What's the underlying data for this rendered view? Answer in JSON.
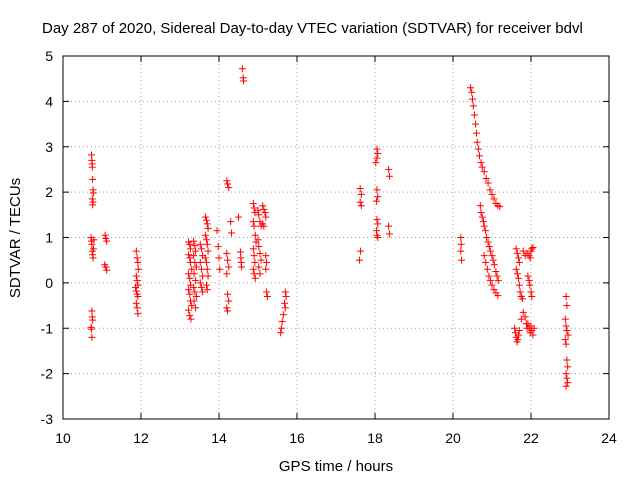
{
  "chart_data": {
    "type": "scatter",
    "title": "Day 287 of 2020, Sidereal Day-to-day VTEC variation (SDTVAR) for receiver bdvl",
    "xlabel": "GPS time / hours",
    "ylabel": "SDTVAR / TECUs",
    "xlim": [
      10,
      24
    ],
    "ylim": [
      -3,
      5
    ],
    "xticks": [
      "10",
      "12",
      "14",
      "16",
      "18",
      "20",
      "22",
      "24"
    ],
    "yticks": [
      "-3",
      "-2",
      "-1",
      "0",
      "1",
      "2",
      "3",
      "4",
      "5"
    ],
    "grid": true,
    "marker": "+",
    "color": "#ff0000",
    "series": [
      {
        "name": "SDTVAR",
        "points": [
          [
            10.73,
            2.82
          ],
          [
            10.74,
            2.7
          ],
          [
            10.75,
            2.62
          ],
          [
            10.75,
            2.55
          ],
          [
            10.76,
            2.28
          ],
          [
            10.77,
            2.05
          ],
          [
            10.78,
            1.98
          ],
          [
            10.75,
            1.85
          ],
          [
            10.77,
            1.78
          ],
          [
            10.76,
            1.72
          ],
          [
            10.72,
            1.0
          ],
          [
            10.73,
            0.92
          ],
          [
            10.74,
            0.85
          ],
          [
            10.75,
            0.7
          ],
          [
            10.76,
            0.62
          ],
          [
            10.77,
            0.55
          ],
          [
            10.78,
            0.75
          ],
          [
            10.79,
            0.95
          ],
          [
            10.74,
            -0.62
          ],
          [
            10.75,
            -0.75
          ],
          [
            10.76,
            -0.82
          ],
          [
            10.72,
            -0.98
          ],
          [
            10.73,
            -1.02
          ],
          [
            10.74,
            -1.2
          ],
          [
            11.08,
            1.05
          ],
          [
            11.1,
            0.98
          ],
          [
            11.12,
            0.92
          ],
          [
            11.07,
            0.4
          ],
          [
            11.1,
            0.35
          ],
          [
            11.12,
            0.28
          ],
          [
            11.88,
            0.7
          ],
          [
            11.9,
            0.55
          ],
          [
            11.92,
            0.45
          ],
          [
            11.93,
            0.3
          ],
          [
            11.88,
            0.15
          ],
          [
            11.9,
            0.05
          ],
          [
            11.92,
            -0.05
          ],
          [
            11.86,
            -0.1
          ],
          [
            11.88,
            -0.18
          ],
          [
            11.9,
            -0.25
          ],
          [
            11.92,
            -0.3
          ],
          [
            11.88,
            -0.45
          ],
          [
            11.9,
            -0.55
          ],
          [
            11.92,
            -0.68
          ],
          [
            13.22,
            0.9
          ],
          [
            13.25,
            0.85
          ],
          [
            13.27,
            0.75
          ],
          [
            13.22,
            0.62
          ],
          [
            13.25,
            0.55
          ],
          [
            13.27,
            0.45
          ],
          [
            13.3,
            0.3
          ],
          [
            13.22,
            0.2
          ],
          [
            13.25,
            0.1
          ],
          [
            13.27,
            -0.05
          ],
          [
            13.22,
            -0.15
          ],
          [
            13.25,
            -0.25
          ],
          [
            13.27,
            -0.4
          ],
          [
            13.3,
            -0.5
          ],
          [
            13.22,
            -0.6
          ],
          [
            13.25,
            -0.72
          ],
          [
            13.28,
            -0.8
          ],
          [
            13.35,
            0.92
          ],
          [
            13.38,
            0.82
          ],
          [
            13.4,
            0.7
          ],
          [
            13.35,
            0.6
          ],
          [
            13.38,
            0.45
          ],
          [
            13.42,
            0.35
          ],
          [
            13.36,
            0.2
          ],
          [
            13.4,
            0.05
          ],
          [
            13.35,
            -0.1
          ],
          [
            13.38,
            -0.2
          ],
          [
            13.42,
            -0.3
          ],
          [
            13.36,
            -0.4
          ],
          [
            13.4,
            -0.55
          ],
          [
            13.52,
            0.85
          ],
          [
            13.55,
            0.75
          ],
          [
            13.58,
            0.6
          ],
          [
            13.52,
            0.45
          ],
          [
            13.55,
            0.3
          ],
          [
            13.58,
            0.15
          ],
          [
            13.52,
            0.0
          ],
          [
            13.55,
            -0.1
          ],
          [
            13.58,
            -0.2
          ],
          [
            13.65,
            1.45
          ],
          [
            13.68,
            1.38
          ],
          [
            13.7,
            1.3
          ],
          [
            13.72,
            1.2
          ],
          [
            13.65,
            1.05
          ],
          [
            13.68,
            0.95
          ],
          [
            13.7,
            0.85
          ],
          [
            13.72,
            0.7
          ],
          [
            13.65,
            0.55
          ],
          [
            13.68,
            0.45
          ],
          [
            13.7,
            0.3
          ],
          [
            13.72,
            0.15
          ],
          [
            13.68,
            -0.05
          ],
          [
            13.7,
            -0.15
          ],
          [
            13.95,
            1.15
          ],
          [
            13.98,
            0.8
          ],
          [
            14.0,
            0.55
          ],
          [
            14.02,
            0.3
          ],
          [
            14.2,
            2.25
          ],
          [
            14.22,
            2.18
          ],
          [
            14.25,
            2.1
          ],
          [
            14.2,
            0.65
          ],
          [
            14.22,
            0.5
          ],
          [
            14.25,
            0.35
          ],
          [
            14.2,
            0.2
          ],
          [
            14.22,
            -0.25
          ],
          [
            14.25,
            -0.4
          ],
          [
            14.2,
            -0.55
          ],
          [
            14.22,
            -0.62
          ],
          [
            14.3,
            1.35
          ],
          [
            14.32,
            1.1
          ],
          [
            14.5,
            1.45
          ],
          [
            14.55,
            0.68
          ],
          [
            14.56,
            0.55
          ],
          [
            14.57,
            0.45
          ],
          [
            14.58,
            0.35
          ],
          [
            14.6,
            4.72
          ],
          [
            14.62,
            4.52
          ],
          [
            14.63,
            4.45
          ],
          [
            14.88,
            1.75
          ],
          [
            14.9,
            1.65
          ],
          [
            14.92,
            1.55
          ],
          [
            14.88,
            1.35
          ],
          [
            14.9,
            1.25
          ],
          [
            14.93,
            1.05
          ],
          [
            14.95,
            0.9
          ],
          [
            14.88,
            0.75
          ],
          [
            14.9,
            0.6
          ],
          [
            14.92,
            0.45
          ],
          [
            14.88,
            0.3
          ],
          [
            14.9,
            0.2
          ],
          [
            14.93,
            0.1
          ],
          [
            15.0,
            1.6
          ],
          [
            15.02,
            1.5
          ],
          [
            15.05,
            1.35
          ],
          [
            15.08,
            1.25
          ],
          [
            15.0,
            0.95
          ],
          [
            15.02,
            0.8
          ],
          [
            15.05,
            0.65
          ],
          [
            15.08,
            0.5
          ],
          [
            15.02,
            0.35
          ],
          [
            15.05,
            0.2
          ],
          [
            15.12,
            1.7
          ],
          [
            15.15,
            1.62
          ],
          [
            15.18,
            1.55
          ],
          [
            15.2,
            1.45
          ],
          [
            15.12,
            1.3
          ],
          [
            15.15,
            1.25
          ],
          [
            15.2,
            0.6
          ],
          [
            15.22,
            0.45
          ],
          [
            15.2,
            0.3
          ],
          [
            15.22,
            -0.2
          ],
          [
            15.24,
            -0.3
          ],
          [
            15.7,
            -0.2
          ],
          [
            15.72,
            -0.3
          ],
          [
            15.68,
            -0.45
          ],
          [
            15.7,
            -0.55
          ],
          [
            15.65,
            -0.7
          ],
          [
            15.62,
            -0.85
          ],
          [
            15.6,
            -1.0
          ],
          [
            15.58,
            -1.1
          ],
          [
            17.62,
            2.08
          ],
          [
            17.65,
            1.95
          ],
          [
            17.62,
            1.78
          ],
          [
            17.65,
            1.7
          ],
          [
            17.63,
            0.7
          ],
          [
            17.6,
            0.5
          ],
          [
            18.05,
            2.95
          ],
          [
            18.07,
            2.85
          ],
          [
            18.05,
            2.75
          ],
          [
            18.02,
            2.65
          ],
          [
            18.05,
            2.05
          ],
          [
            18.07,
            1.9
          ],
          [
            18.04,
            1.8
          ],
          [
            18.05,
            1.4
          ],
          [
            18.07,
            1.3
          ],
          [
            18.04,
            1.15
          ],
          [
            18.05,
            1.05
          ],
          [
            18.07,
            1.0
          ],
          [
            18.35,
            2.5
          ],
          [
            18.37,
            2.35
          ],
          [
            18.35,
            1.25
          ],
          [
            18.37,
            1.08
          ],
          [
            20.2,
            1.0
          ],
          [
            20.21,
            0.85
          ],
          [
            20.2,
            0.7
          ],
          [
            20.22,
            0.5
          ],
          [
            20.45,
            4.3
          ],
          [
            20.48,
            4.2
          ],
          [
            20.5,
            4.05
          ],
          [
            20.52,
            3.9
          ],
          [
            20.55,
            3.7
          ],
          [
            20.58,
            3.5
          ],
          [
            20.6,
            3.3
          ],
          [
            20.62,
            3.1
          ],
          [
            20.65,
            2.95
          ],
          [
            20.68,
            2.8
          ],
          [
            20.72,
            2.65
          ],
          [
            20.75,
            2.55
          ],
          [
            20.8,
            2.45
          ],
          [
            20.85,
            2.3
          ],
          [
            20.9,
            2.2
          ],
          [
            20.95,
            2.05
          ],
          [
            21.0,
            1.95
          ],
          [
            21.05,
            1.85
          ],
          [
            21.1,
            1.75
          ],
          [
            21.15,
            1.7
          ],
          [
            21.2,
            1.68
          ],
          [
            20.7,
            1.7
          ],
          [
            20.72,
            1.55
          ],
          [
            20.75,
            1.45
          ],
          [
            20.78,
            1.35
          ],
          [
            20.8,
            1.25
          ],
          [
            20.83,
            1.15
          ],
          [
            20.86,
            1.0
          ],
          [
            20.9,
            0.9
          ],
          [
            20.93,
            0.8
          ],
          [
            20.96,
            0.7
          ],
          [
            21.0,
            0.6
          ],
          [
            21.03,
            0.5
          ],
          [
            21.06,
            0.4
          ],
          [
            21.1,
            0.25
          ],
          [
            21.13,
            0.15
          ],
          [
            21.16,
            0.05
          ],
          [
            20.8,
            0.6
          ],
          [
            20.84,
            0.45
          ],
          [
            20.88,
            0.3
          ],
          [
            20.92,
            0.15
          ],
          [
            20.96,
            0.05
          ],
          [
            21.0,
            -0.05
          ],
          [
            21.05,
            -0.15
          ],
          [
            21.1,
            -0.22
          ],
          [
            21.15,
            -0.28
          ],
          [
            21.62,
            0.75
          ],
          [
            21.65,
            0.65
          ],
          [
            21.68,
            0.55
          ],
          [
            21.7,
            0.45
          ],
          [
            21.62,
            0.3
          ],
          [
            21.65,
            0.2
          ],
          [
            21.68,
            0.1
          ],
          [
            21.7,
            -0.05
          ],
          [
            21.72,
            -0.2
          ],
          [
            21.75,
            -0.3
          ],
          [
            21.78,
            -0.35
          ],
          [
            21.58,
            -1.0
          ],
          [
            21.6,
            -1.1
          ],
          [
            21.62,
            -1.2
          ],
          [
            21.64,
            -1.3
          ],
          [
            21.66,
            -1.25
          ],
          [
            21.68,
            -1.15
          ],
          [
            21.7,
            -1.05
          ],
          [
            21.75,
            -0.8
          ],
          [
            21.8,
            -0.65
          ],
          [
            21.85,
            -0.75
          ],
          [
            21.88,
            -0.9
          ],
          [
            21.9,
            -1.0
          ],
          [
            21.8,
            0.7
          ],
          [
            21.85,
            0.6
          ],
          [
            21.9,
            0.65
          ],
          [
            21.95,
            0.6
          ],
          [
            21.98,
            0.55
          ],
          [
            22.0,
            0.7
          ],
          [
            22.02,
            0.75
          ],
          [
            22.05,
            0.78
          ],
          [
            21.92,
            0.15
          ],
          [
            21.95,
            0.05
          ],
          [
            21.97,
            -0.05
          ],
          [
            22.0,
            -0.2
          ],
          [
            22.02,
            -0.3
          ],
          [
            21.92,
            -0.9
          ],
          [
            21.95,
            -1.0
          ],
          [
            21.98,
            -1.1
          ],
          [
            22.0,
            -0.95
          ],
          [
            22.02,
            -1.05
          ],
          [
            22.05,
            -1.15
          ],
          [
            22.08,
            -1.0
          ],
          [
            22.9,
            -0.3
          ],
          [
            22.92,
            -0.5
          ],
          [
            22.88,
            -0.8
          ],
          [
            22.9,
            -0.95
          ],
          [
            22.92,
            -1.05
          ],
          [
            22.95,
            -1.15
          ],
          [
            22.88,
            -1.25
          ],
          [
            22.9,
            -1.35
          ],
          [
            22.92,
            -1.7
          ],
          [
            22.94,
            -1.85
          ],
          [
            22.9,
            -2.0
          ],
          [
            22.92,
            -2.1
          ],
          [
            22.94,
            -2.2
          ],
          [
            22.9,
            -2.28
          ]
        ]
      }
    ]
  }
}
